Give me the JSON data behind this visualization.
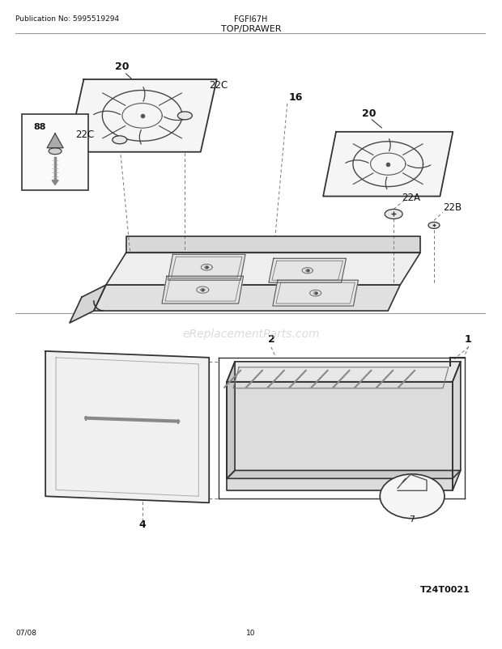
{
  "title": "TOP/DRAWER",
  "pub_no": "Publication No: 5995519294",
  "model": "FGFI67H",
  "date": "07/08",
  "page": "10",
  "watermark": "eReplacementParts.com",
  "ref_code": "T24T0021",
  "bg_color": "#ffffff",
  "line_color": "#333333",
  "text_color": "#111111"
}
